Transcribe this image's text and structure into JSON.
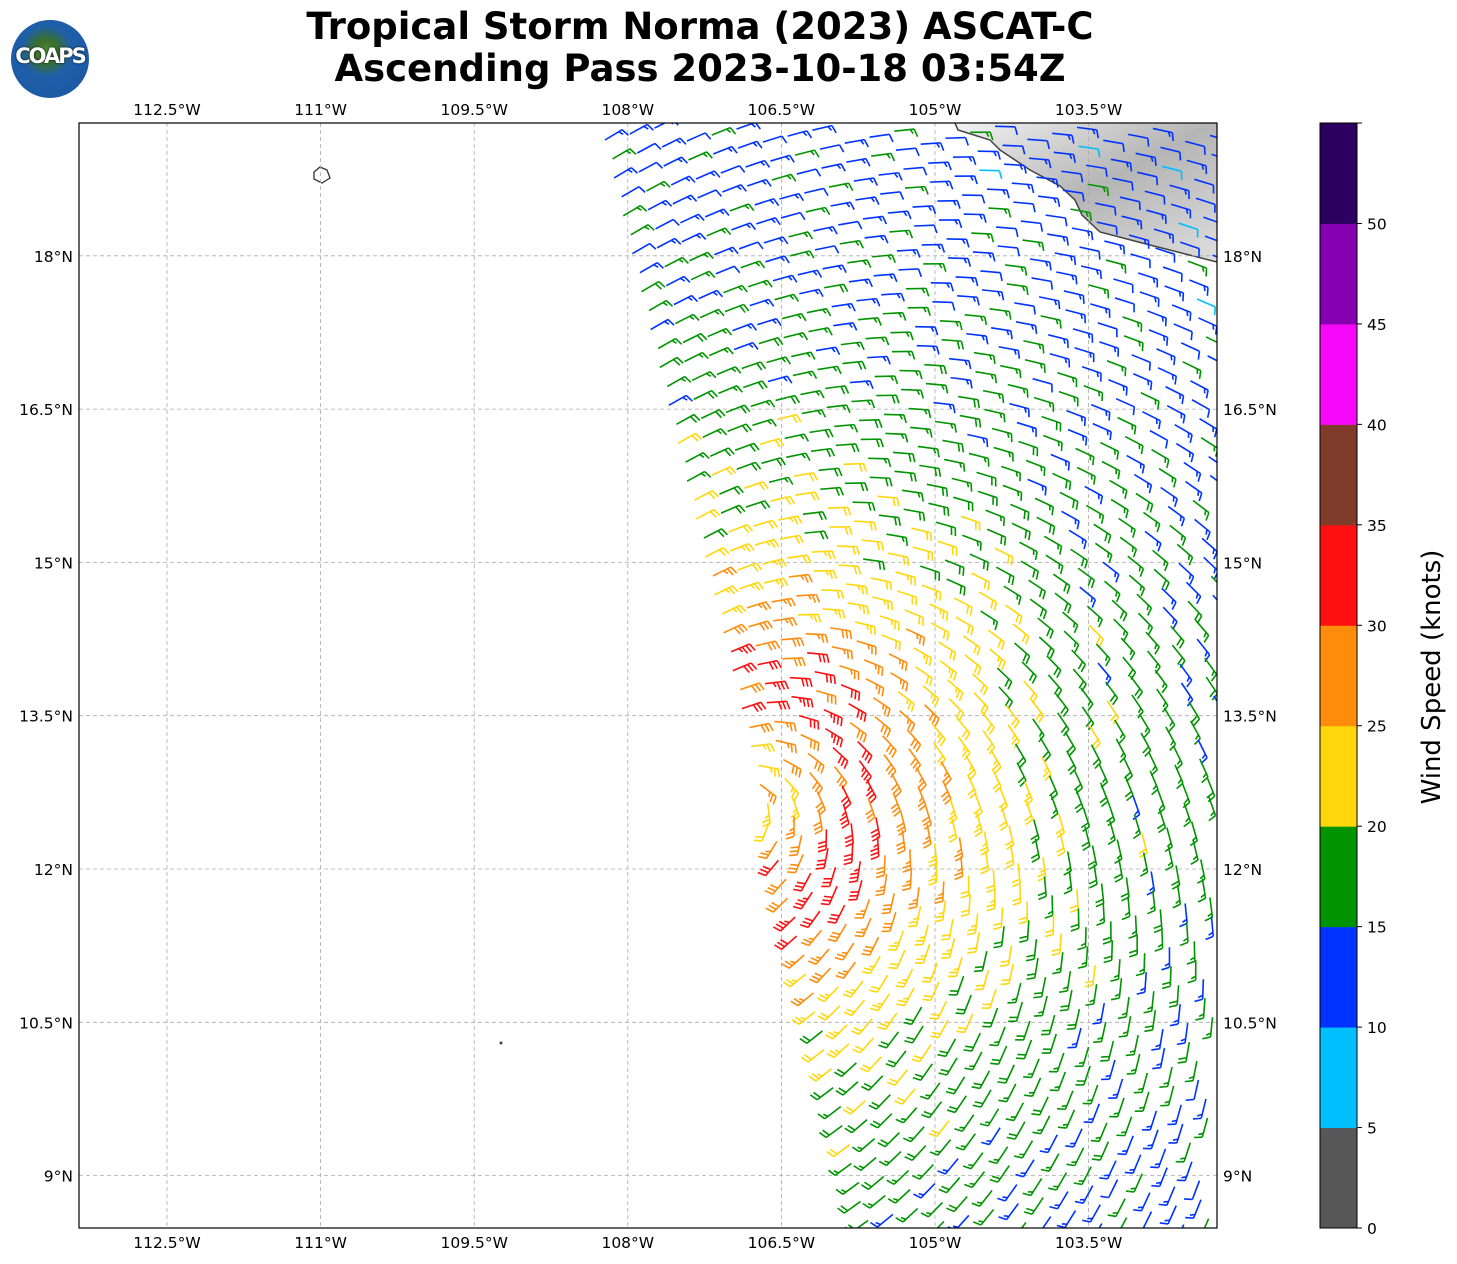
{
  "title": {
    "line1": "Tropical Storm Norma (2023) ASCAT-C",
    "line2": "Ascending Pass 2023-10-18 03:54Z"
  },
  "logo": {
    "text": "COAPS"
  },
  "chart_data": {
    "type": "wind-barb-map",
    "lon_ticks": [
      {
        "value": -112.5,
        "label": "112.5°W"
      },
      {
        "value": -111,
        "label": "111°W"
      },
      {
        "value": -109.5,
        "label": "109.5°W"
      },
      {
        "value": -108,
        "label": "108°W"
      },
      {
        "value": -106.5,
        "label": "106.5°W"
      },
      {
        "value": -105,
        "label": "105°W"
      },
      {
        "value": -103.5,
        "label": "103.5°W"
      }
    ],
    "lat_ticks": [
      {
        "value": 18,
        "label": "18°N"
      },
      {
        "value": 16.5,
        "label": "16.5°N"
      },
      {
        "value": 15,
        "label": "15°N"
      },
      {
        "value": 13.5,
        "label": "13.5°N"
      },
      {
        "value": 12,
        "label": "12°N"
      },
      {
        "value": 10.5,
        "label": "10.5°N"
      },
      {
        "value": 9,
        "label": "9°N"
      }
    ],
    "grid": true,
    "wind_model": {
      "center_lat": 12.7,
      "center_lon": -106.9,
      "vmax_kt": 33,
      "rmax_deg": 1.2
    },
    "colorbar": {
      "label": "Wind Speed (knots)",
      "ticks": [
        "0",
        "5",
        "10",
        "15",
        "20",
        "25",
        "30",
        "35",
        "40",
        "45",
        "50"
      ],
      "range": [
        0,
        55
      ],
      "colors": [
        "#575757",
        "#00bfff",
        "#0033ff",
        "#009400",
        "#ffd70a",
        "#ff8c0a",
        "#ff1010",
        "#7f3c2a",
        "#f808f8",
        "#8400b0",
        "#2c0060"
      ]
    }
  }
}
